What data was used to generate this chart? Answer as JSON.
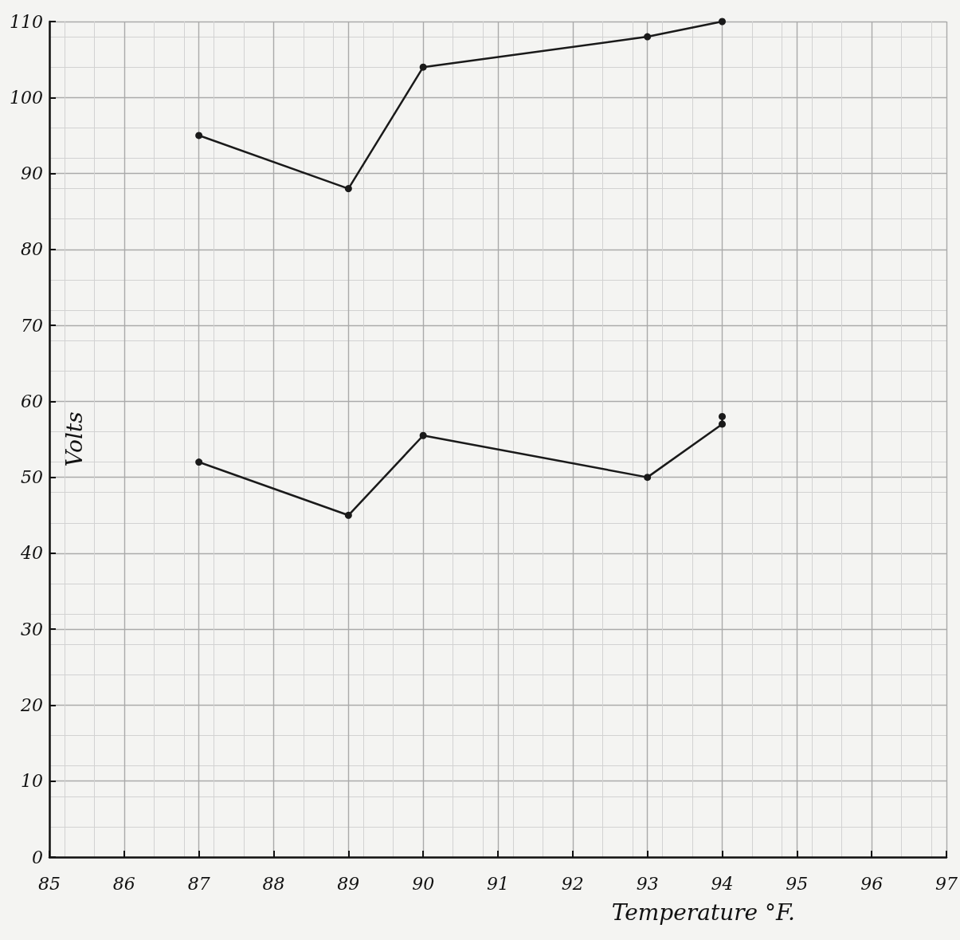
{
  "chart_data": {
    "type": "line",
    "xlabel": "Temperature °F.",
    "ylabel": "Volts",
    "xlim": [
      85,
      97
    ],
    "xticks": [
      85,
      86,
      87,
      88,
      89,
      90,
      91,
      92,
      93,
      94,
      95,
      96,
      97
    ],
    "ylim": [
      0,
      110
    ],
    "yticks": [
      0,
      10,
      20,
      30,
      40,
      50,
      60,
      70,
      80,
      90,
      100,
      110
    ],
    "grid": true,
    "marker": "circle",
    "line_style": "solid",
    "series": [
      {
        "color": "#1a1a1a",
        "x": [
          87,
          89,
          90,
          93,
          94
        ],
        "values": [
          95,
          88,
          104,
          108,
          110
        ]
      },
      {
        "color": "#1a1a1a",
        "x": [
          87,
          89,
          90,
          93,
          94,
          94
        ],
        "values": [
          52,
          45,
          55.5,
          50,
          57,
          58
        ]
      }
    ]
  }
}
